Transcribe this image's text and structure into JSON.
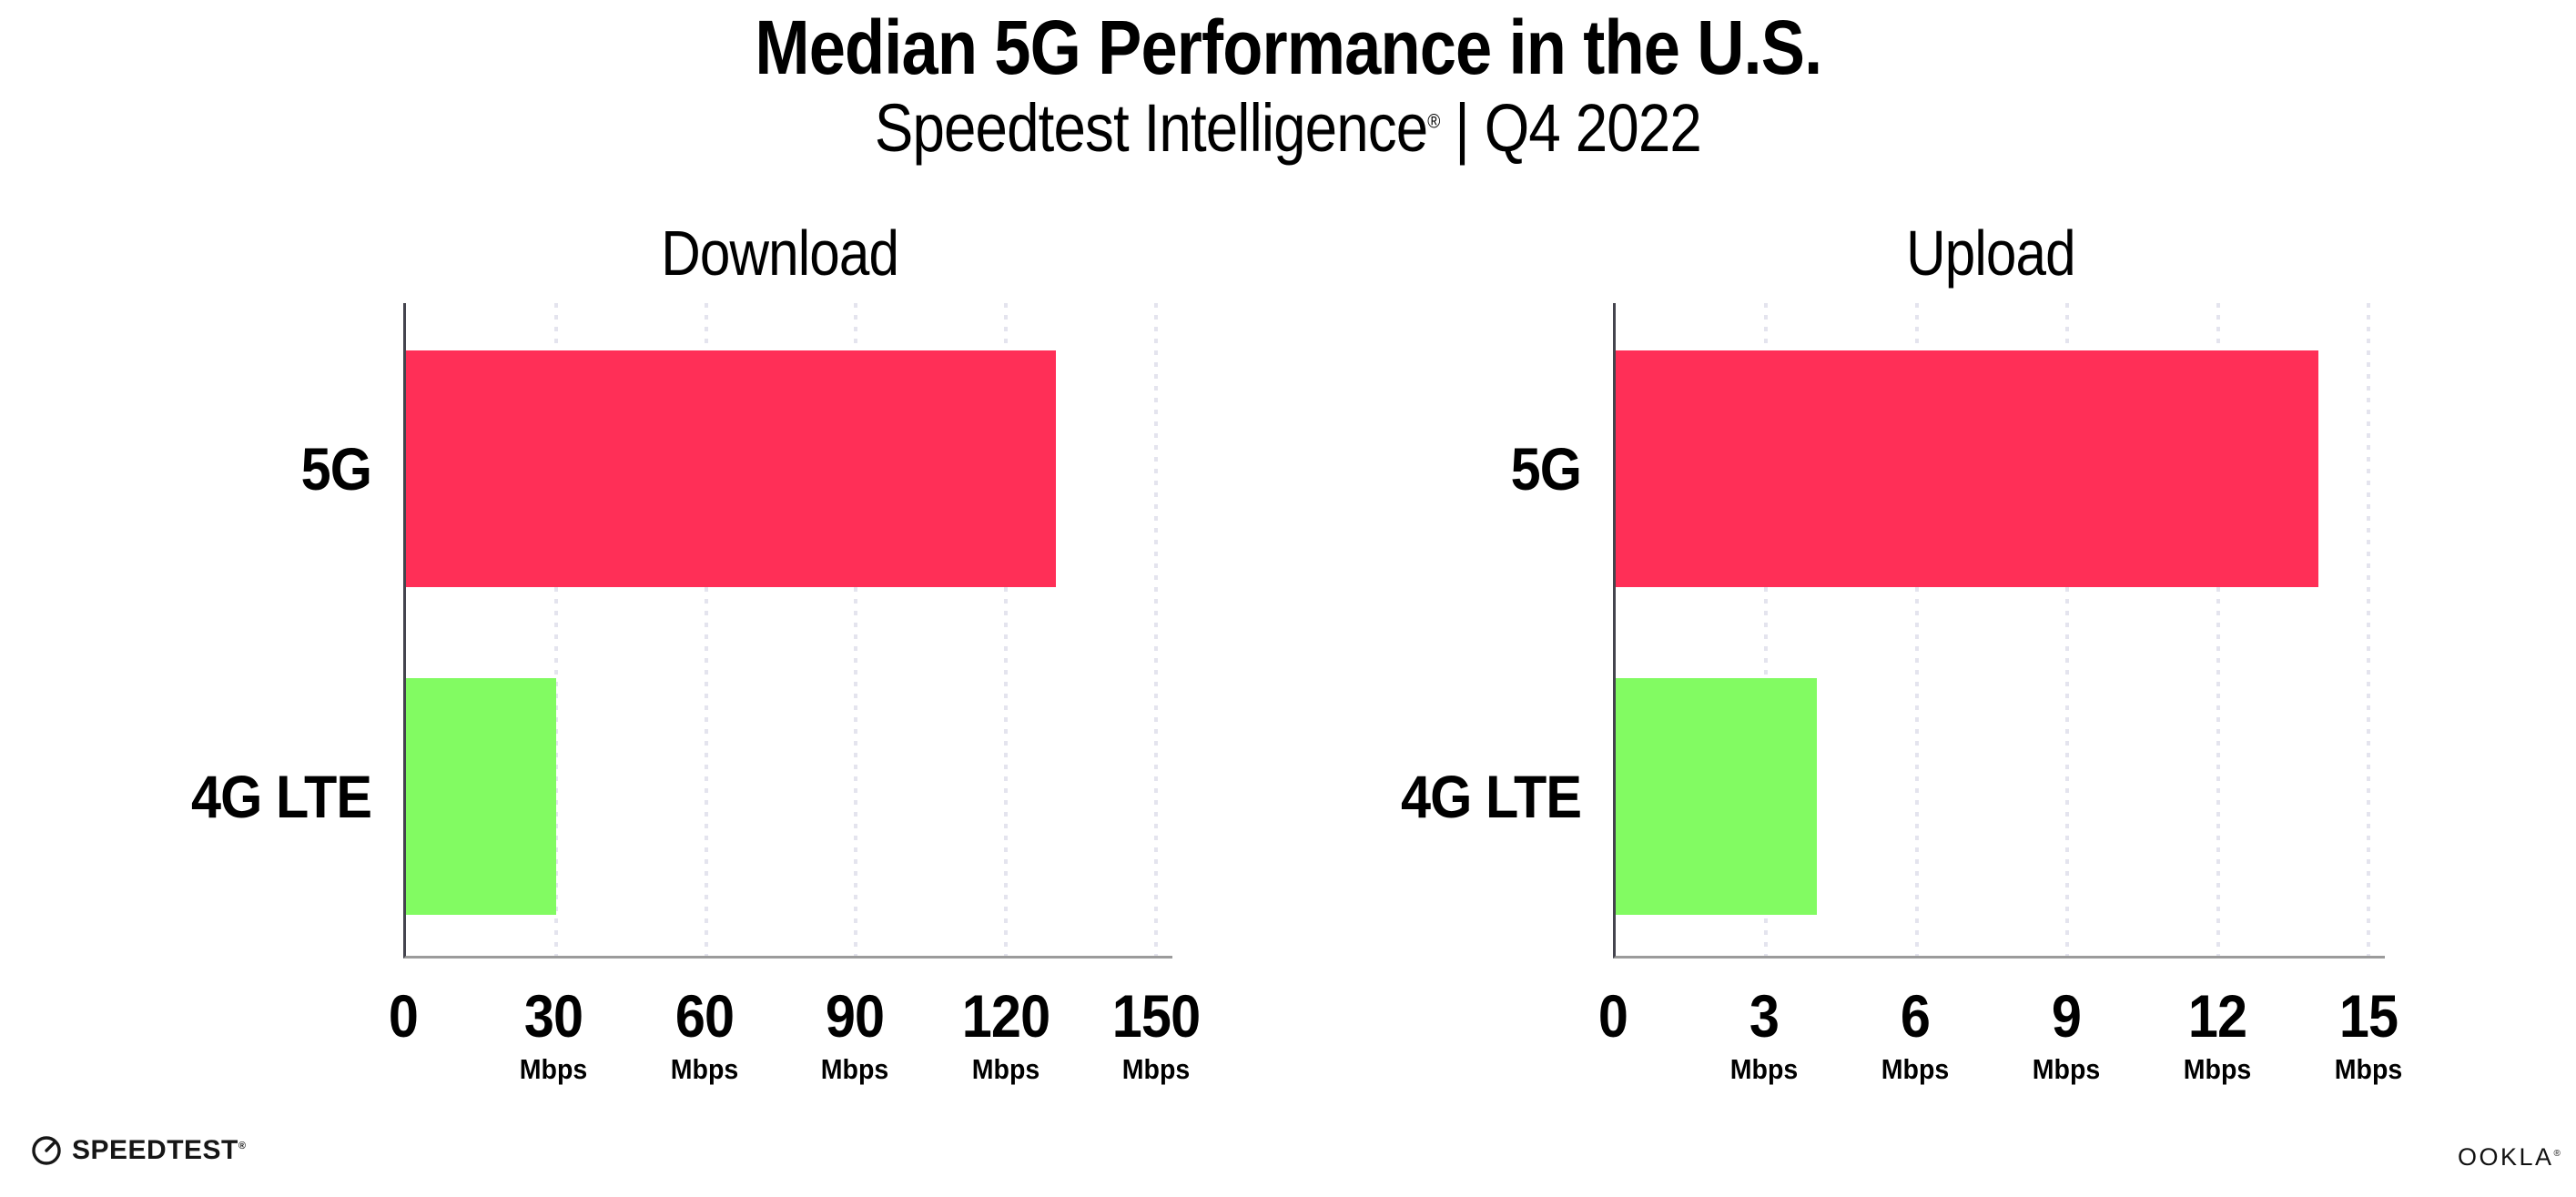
{
  "page": {
    "title": "Median 5G Performance in the U.S.",
    "subtitle_brand": "Speedtest Intelligence",
    "subtitle_reg": "®",
    "subtitle_rest": " | Q4 2022",
    "background_color": "#ffffff"
  },
  "colors": {
    "bar_5g": "#ff2f57",
    "bar_4g_lte": "#82fb62",
    "gridline": "#e4e4ee",
    "y_axis": "#44444e",
    "x_axis": "#9b9b9b",
    "text": "#000000"
  },
  "chart_data": [
    {
      "type": "bar",
      "orientation": "horizontal",
      "title": "Download",
      "categories": [
        "5G",
        "4G LTE"
      ],
      "values": [
        130,
        30
      ],
      "unit": "Mbps",
      "xlim": [
        0,
        150
      ],
      "xticks": [
        {
          "value": 0,
          "label": "0",
          "unit": ""
        },
        {
          "value": 30,
          "label": "30",
          "unit": "Mbps"
        },
        {
          "value": 60,
          "label": "60",
          "unit": "Mbps"
        },
        {
          "value": 90,
          "label": "90",
          "unit": "Mbps"
        },
        {
          "value": 120,
          "label": "120",
          "unit": "Mbps"
        },
        {
          "value": 150,
          "label": "150",
          "unit": "Mbps"
        }
      ],
      "bar_colors": [
        "#ff2f57",
        "#82fb62"
      ],
      "grid": "vertical-dotted",
      "legend": "none"
    },
    {
      "type": "bar",
      "orientation": "horizontal",
      "title": "Upload",
      "categories": [
        "5G",
        "4G LTE"
      ],
      "values": [
        14,
        4
      ],
      "unit": "Mbps",
      "xlim": [
        0,
        15
      ],
      "xticks": [
        {
          "value": 0,
          "label": "0",
          "unit": ""
        },
        {
          "value": 3,
          "label": "3",
          "unit": "Mbps"
        },
        {
          "value": 6,
          "label": "6",
          "unit": "Mbps"
        },
        {
          "value": 9,
          "label": "9",
          "unit": "Mbps"
        },
        {
          "value": 12,
          "label": "12",
          "unit": "Mbps"
        },
        {
          "value": 15,
          "label": "15",
          "unit": "Mbps"
        }
      ],
      "bar_colors": [
        "#ff2f57",
        "#82fb62"
      ],
      "grid": "vertical-dotted",
      "legend": "none"
    }
  ],
  "branding": {
    "speedtest_label": "SPEEDTEST",
    "speedtest_reg": "®",
    "ookla_label": "OOKLA",
    "ookla_reg": "®"
  }
}
